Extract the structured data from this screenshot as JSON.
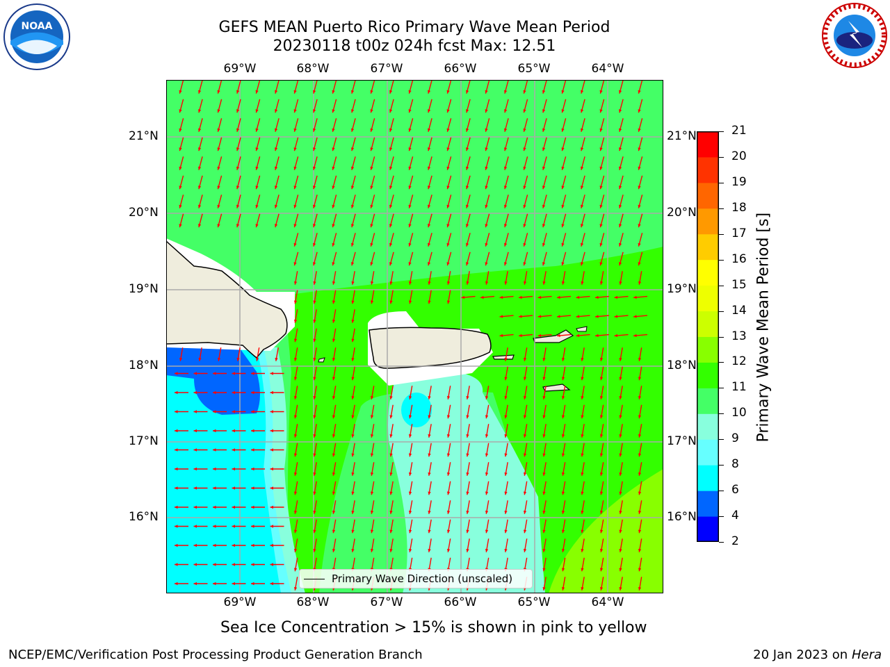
{
  "title": {
    "line1": "GEFS MEAN Puerto Rico Primary Wave Mean Period",
    "line2": "20230118 t00z 024h fcst   Max: 12.51"
  },
  "logos": {
    "left": {
      "icon": "noaa-logo",
      "text": "NOAA"
    },
    "right": {
      "icon": "nws-logo",
      "text": "NATIONAL WEATHER SERVICE"
    }
  },
  "map": {
    "lon_labels": [
      "69°W",
      "68°W",
      "67°W",
      "66°W",
      "65°W",
      "64°W"
    ],
    "lat_labels": [
      "21°N",
      "20°N",
      "19°N",
      "18°N",
      "17°N",
      "16°N"
    ],
    "legend": "Primary Wave Direction (unscaled)",
    "arrow_color": "#ff0000"
  },
  "colorbar": {
    "title": "Primary Wave Mean Period [s]",
    "ticks": [
      "21",
      "20",
      "19",
      "18",
      "17",
      "16",
      "15",
      "14",
      "13",
      "12",
      "11",
      "10",
      "9",
      "8",
      "6",
      "4",
      "2"
    ],
    "colors": [
      "#0000ff",
      "#0066ff",
      "#00ffff",
      "#66ffff",
      "#88ffdd",
      "#44ff66",
      "#33ff00",
      "#88ff00",
      "#ccff00",
      "#eeff00",
      "#ffff00",
      "#ffcc00",
      "#ff9900",
      "#ff6600",
      "#ff3300",
      "#ff0000"
    ]
  },
  "note": "Sea Ice Concentration > 15% is shown in pink to yellow",
  "footer": {
    "left": "NCEP/EMC/Verification Post Processing Product Generation Branch",
    "right_prefix": "20 Jan 2023 on ",
    "right_host": "Hera"
  }
}
